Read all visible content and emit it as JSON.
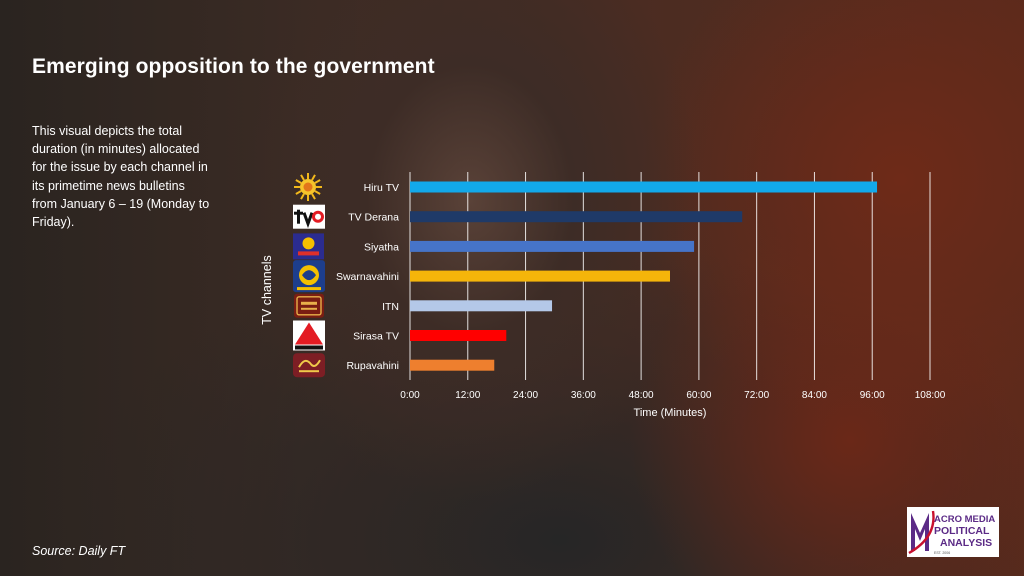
{
  "page": {
    "title": "Emerging opposition to the government",
    "description": "This visual depicts the total duration  (in minutes) allocated for the issue by each channel in its primetime news bulletins from January 6 – 19  (Monday to Friday).",
    "source": "Source: Daily FT",
    "brand_logo": {
      "line1": "ACRO MEDIA",
      "line2": "POLITICAL",
      "line3": "ANALYSIS",
      "est": "EST. 2006"
    }
  },
  "colors": {
    "grid": "#ffffff",
    "brand_purple": "#5b2a86",
    "brand_red": "#c8102e"
  },
  "chart_data": {
    "type": "bar",
    "orientation": "horizontal",
    "categories": [
      "Hiru TV",
      "TV Derana",
      "Siyatha",
      "Swarnavahini",
      "ITN",
      "Sirasa TV",
      "Rupavahini"
    ],
    "values": [
      97,
      69,
      59,
      54,
      29.5,
      20,
      17.5
    ],
    "value_unit": "minutes",
    "bar_colors": [
      "#12a9ea",
      "#1f3a68",
      "#4674c8",
      "#f5b50a",
      "#b4c8e8",
      "#ff0000",
      "#ee7f2e"
    ],
    "channel_logo_icons": [
      "hiru-tv-logo-icon",
      "tv-derana-logo-icon",
      "siyatha-tv-logo-icon",
      "swarnavahini-logo-icon",
      "itn-logo-icon",
      "sirasa-tv-logo-icon",
      "rupavahini-logo-icon"
    ],
    "xlabel": "Time (Minutes)",
    "ylabel": "TV channels",
    "xlim": [
      0,
      108
    ],
    "xticks": [
      0,
      12,
      24,
      36,
      48,
      60,
      72,
      84,
      96,
      108
    ],
    "xtick_labels": [
      "0:00",
      "12:00",
      "24:00",
      "36:00",
      "48:00",
      "60:00",
      "72:00",
      "84:00",
      "96:00",
      "108:00"
    ],
    "grid": true,
    "legend": false
  }
}
